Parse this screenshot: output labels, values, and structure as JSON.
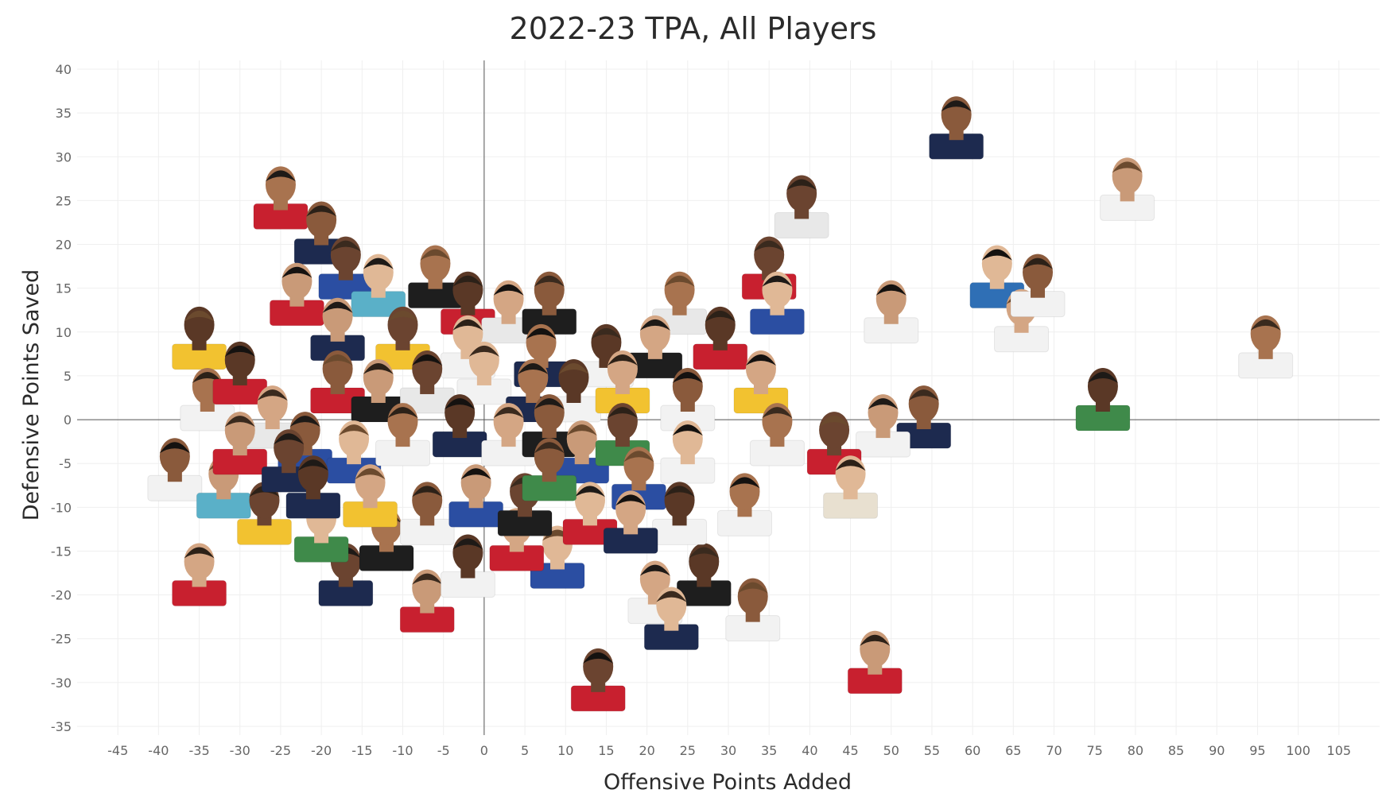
{
  "chart_data": {
    "type": "scatter",
    "title": "2022-23 TPA, All Players",
    "xlabel": "Offensive Points Added",
    "ylabel": "Defensive Points Saved",
    "xlim": [
      -50,
      110
    ],
    "ylim": [
      -36,
      41
    ],
    "x_ticks": [
      -45,
      -40,
      -35,
      -30,
      -25,
      -20,
      -15,
      -10,
      -5,
      0,
      5,
      10,
      15,
      20,
      25,
      30,
      35,
      40,
      45,
      50,
      55,
      60,
      65,
      70,
      75,
      80,
      85,
      90,
      95,
      100,
      105
    ],
    "y_ticks": [
      40,
      35,
      30,
      25,
      20,
      15,
      10,
      5,
      0,
      -5,
      -10,
      -15,
      -20,
      -25,
      -30,
      -35
    ],
    "grid": true,
    "zero_lines": true,
    "marker": "player headshot",
    "points": [
      {
        "x": 58,
        "y": 33,
        "jersey": "#1d2a4f"
      },
      {
        "x": 79,
        "y": 26,
        "jersey": "#f2f2f2"
      },
      {
        "x": 39,
        "y": 24,
        "jersey": "#e8e8e8"
      },
      {
        "x": 63,
        "y": 16,
        "jersey": "#2f6fb5"
      },
      {
        "x": 96,
        "y": 8,
        "jersey": "#f2f2f2"
      },
      {
        "x": 76,
        "y": 2,
        "jersey": "#3f8a4a"
      },
      {
        "x": 66,
        "y": 11,
        "jersey": "#f2f2f2"
      },
      {
        "x": 68,
        "y": 15,
        "jersey": "#f2f2f2"
      },
      {
        "x": 50,
        "y": 12,
        "jersey": "#f2f2f2"
      },
      {
        "x": 35,
        "y": 17,
        "jersey": "#c8202f"
      },
      {
        "x": 36,
        "y": 13,
        "jersey": "#2b4ea2"
      },
      {
        "x": 24,
        "y": 13,
        "jersey": "#e8e8e8"
      },
      {
        "x": 29,
        "y": 9,
        "jersey": "#c8202f"
      },
      {
        "x": 34,
        "y": 4,
        "jersey": "#f2c230"
      },
      {
        "x": 54,
        "y": 0,
        "jersey": "#1d2a4f"
      },
      {
        "x": 49,
        "y": -1,
        "jersey": "#f2f2f2"
      },
      {
        "x": 43,
        "y": -3,
        "jersey": "#c8202f"
      },
      {
        "x": 45,
        "y": -8,
        "jersey": "#e8e0d0"
      },
      {
        "x": 32,
        "y": -10,
        "jersey": "#f2f2f2"
      },
      {
        "x": 27,
        "y": -18,
        "jersey": "#1e1e1e"
      },
      {
        "x": 21,
        "y": -20,
        "jersey": "#f2f2f2"
      },
      {
        "x": 33,
        "y": -22,
        "jersey": "#f2f2f2"
      },
      {
        "x": 48,
        "y": -28,
        "jersey": "#c8202f"
      },
      {
        "x": 14,
        "y": -30,
        "jersey": "#c8202f"
      },
      {
        "x": 23,
        "y": -23,
        "jersey": "#1d2a4f"
      },
      {
        "x": -25,
        "y": 25,
        "jersey": "#c8202f"
      },
      {
        "x": -35,
        "y": 9,
        "jersey": "#f2c230"
      },
      {
        "x": -35,
        "y": -18,
        "jersey": "#c8202f"
      },
      {
        "x": -38,
        "y": -6,
        "jersey": "#f2f2f2"
      },
      {
        "x": -7,
        "y": -21,
        "jersey": "#c8202f"
      },
      {
        "x": -17,
        "y": -18,
        "jersey": "#1d2a4f"
      },
      {
        "x": 9,
        "y": -16,
        "jersey": "#2b4ea2"
      },
      {
        "x": -34,
        "y": 2,
        "jersey": "#f2f2f2"
      },
      {
        "x": -30,
        "y": 5,
        "jersey": "#c8202f"
      },
      {
        "x": -26,
        "y": 0,
        "jersey": "#e8e8e8"
      },
      {
        "x": -22,
        "y": -3,
        "jersey": "#2b4ea2"
      },
      {
        "x": -32,
        "y": -8,
        "jersey": "#5ab0c8"
      },
      {
        "x": -27,
        "y": -11,
        "jersey": "#f2c230"
      },
      {
        "x": -20,
        "y": -13,
        "jersey": "#3f8a4a"
      },
      {
        "x": -12,
        "y": -14,
        "jersey": "#1e1e1e"
      },
      {
        "x": -2,
        "y": -17,
        "jersey": "#f2f2f2"
      },
      {
        "x": 4,
        "y": -14,
        "jersey": "#c8202f"
      },
      {
        "x": -20,
        "y": 21,
        "jersey": "#1d2a4f"
      },
      {
        "x": -23,
        "y": 14,
        "jersey": "#c8202f"
      },
      {
        "x": -17,
        "y": 17,
        "jersey": "#2b4ea2"
      },
      {
        "x": -13,
        "y": 15,
        "jersey": "#5ab0c8"
      },
      {
        "x": -6,
        "y": 16,
        "jersey": "#1e1e1e"
      },
      {
        "x": -2,
        "y": 13,
        "jersey": "#c8202f"
      },
      {
        "x": 3,
        "y": 12,
        "jersey": "#e8e8e8"
      },
      {
        "x": 8,
        "y": 13,
        "jersey": "#1e1e1e"
      },
      {
        "x": -18,
        "y": 10,
        "jersey": "#1d2a4f"
      },
      {
        "x": -10,
        "y": 9,
        "jersey": "#f2c230"
      },
      {
        "x": -2,
        "y": 8,
        "jersey": "#f2f2f2"
      },
      {
        "x": 7,
        "y": 7,
        "jersey": "#1d2a4f"
      },
      {
        "x": 15,
        "y": 7,
        "jersey": "#f2f2f2"
      },
      {
        "x": 21,
        "y": 8,
        "jersey": "#1e1e1e"
      },
      {
        "x": -18,
        "y": 4,
        "jersey": "#c8202f"
      },
      {
        "x": -13,
        "y": 3,
        "jersey": "#1e1e1e"
      },
      {
        "x": -7,
        "y": 4,
        "jersey": "#e8e8e8"
      },
      {
        "x": 0,
        "y": 5,
        "jersey": "#f2f2f2"
      },
      {
        "x": 6,
        "y": 3,
        "jersey": "#1d2a4f"
      },
      {
        "x": 11,
        "y": 3,
        "jersey": "#f2f2f2"
      },
      {
        "x": 17,
        "y": 4,
        "jersey": "#f2c230"
      },
      {
        "x": 25,
        "y": 2,
        "jersey": "#f2f2f2"
      },
      {
        "x": -30,
        "y": -3,
        "jersey": "#c8202f"
      },
      {
        "x": -24,
        "y": -5,
        "jersey": "#1d2a4f"
      },
      {
        "x": -16,
        "y": -4,
        "jersey": "#2b4ea2"
      },
      {
        "x": -10,
        "y": -2,
        "jersey": "#f2f2f2"
      },
      {
        "x": -3,
        "y": -1,
        "jersey": "#1d2a4f"
      },
      {
        "x": 3,
        "y": -2,
        "jersey": "#f2f2f2"
      },
      {
        "x": 8,
        "y": -1,
        "jersey": "#1e1e1e"
      },
      {
        "x": 12,
        "y": -4,
        "jersey": "#2b4ea2"
      },
      {
        "x": 17,
        "y": -2,
        "jersey": "#3f8a4a"
      },
      {
        "x": 25,
        "y": -4,
        "jersey": "#f2f2f2"
      },
      {
        "x": 36,
        "y": -2,
        "jersey": "#f2f2f2"
      },
      {
        "x": -21,
        "y": -8,
        "jersey": "#1d2a4f"
      },
      {
        "x": -14,
        "y": -9,
        "jersey": "#f2c230"
      },
      {
        "x": -7,
        "y": -11,
        "jersey": "#f2f2f2"
      },
      {
        "x": -1,
        "y": -9,
        "jersey": "#2b4ea2"
      },
      {
        "x": 5,
        "y": -10,
        "jersey": "#1e1e1e"
      },
      {
        "x": 13,
        "y": -11,
        "jersey": "#c8202f"
      },
      {
        "x": 19,
        "y": -7,
        "jersey": "#2b4ea2"
      },
      {
        "x": 24,
        "y": -11,
        "jersey": "#f2f2f2"
      },
      {
        "x": 18,
        "y": -12,
        "jersey": "#1d2a4f"
      },
      {
        "x": 8,
        "y": -6,
        "jersey": "#3f8a4a"
      }
    ]
  }
}
